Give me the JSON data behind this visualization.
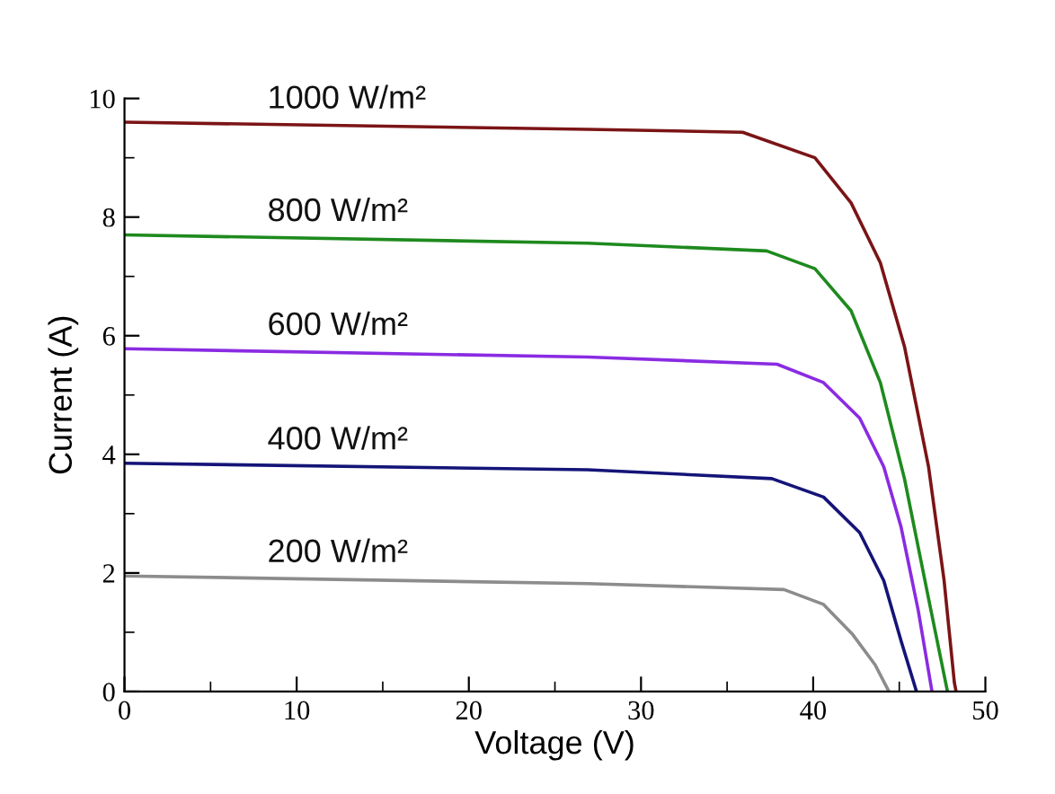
{
  "chart_data": {
    "type": "line",
    "xlabel": "Voltage (V)",
    "ylabel": "Current (A)",
    "xlim": [
      0,
      50
    ],
    "ylim": [
      0,
      10
    ],
    "xticks": [
      0,
      {
        "value": 5,
        "label": null
      },
      10,
      {
        "value": 15,
        "label": null
      },
      20,
      {
        "value": 25,
        "label": null
      },
      30,
      {
        "value": 35,
        "label": null
      },
      40,
      {
        "value": 45,
        "label": null
      },
      50
    ],
    "yticks": [
      0,
      {
        "value": 1,
        "label": null
      },
      2,
      {
        "value": 3,
        "label": null
      },
      4,
      {
        "value": 5,
        "label": null
      },
      6,
      {
        "value": 7,
        "label": null
      },
      8,
      {
        "value": 9,
        "label": null
      },
      10
    ],
    "grid": false,
    "legend": false,
    "marker": "none",
    "line_style": "solid",
    "series": [
      {
        "name": "1000 W/m²",
        "color": "#7b1416",
        "x": [
          0,
          26.9,
          35.9,
          40.1,
          42.2,
          43.9,
          45.3,
          46.7,
          47.6,
          48.2,
          48.3
        ],
        "values": [
          9.6,
          9.48,
          9.43,
          9.0,
          8.24,
          7.23,
          5.82,
          3.79,
          1.88,
          0.15,
          0
        ]
      },
      {
        "name": "800 W/m²",
        "color": "#1e8a1e",
        "x": [
          0,
          26.9,
          37.3,
          40.1,
          42.2,
          43.9,
          45.3,
          46.7,
          47.8
        ],
        "values": [
          7.7,
          7.56,
          7.43,
          7.13,
          6.42,
          5.21,
          3.59,
          1.57,
          0
        ]
      },
      {
        "name": "600 W/m²",
        "color": "#8a2be2",
        "x": [
          0,
          26.9,
          37.9,
          40.6,
          42.7,
          44.1,
          45.1,
          46.1,
          46.9
        ],
        "values": [
          5.78,
          5.64,
          5.52,
          5.21,
          4.61,
          3.79,
          2.78,
          1.37,
          0
        ]
      },
      {
        "name": "400 W/m²",
        "color": "#141478",
        "x": [
          0,
          26.9,
          37.6,
          40.6,
          42.7,
          44.1,
          45.1,
          46.0
        ],
        "values": [
          3.85,
          3.74,
          3.59,
          3.28,
          2.68,
          1.87,
          0.86,
          0
        ]
      },
      {
        "name": "200 W/m²",
        "color": "#8c8c8c",
        "x": [
          0,
          26.9,
          38.3,
          40.6,
          42.3,
          43.6,
          44.4
        ],
        "values": [
          1.95,
          1.82,
          1.72,
          1.47,
          0.96,
          0.45,
          0
        ]
      }
    ]
  }
}
